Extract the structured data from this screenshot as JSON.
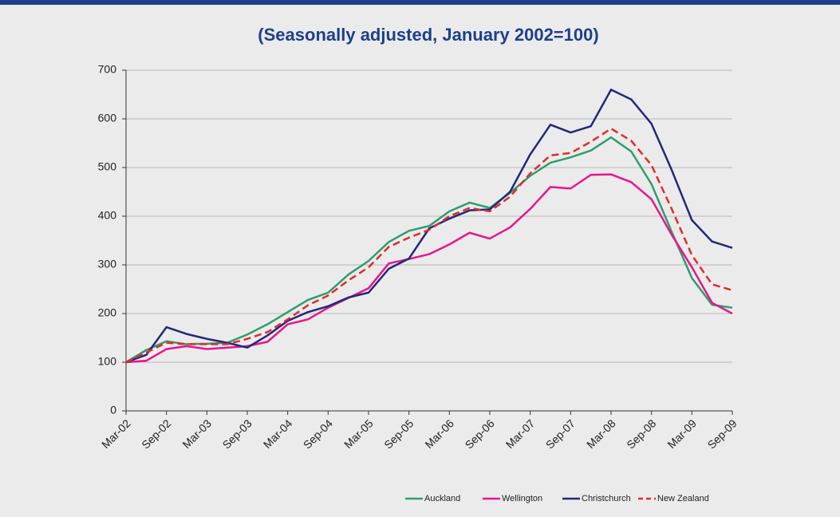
{
  "chart_data": {
    "type": "line",
    "title": "(Seasonally adjusted, January 2002=100)",
    "categories": [
      "Mar-02",
      null,
      "Sep-02",
      null,
      "Mar-03",
      null,
      "Sep-03",
      null,
      "Mar-04",
      null,
      "Sep-04",
      null,
      "Mar-05",
      null,
      "Sep-05",
      null,
      "Mar-06",
      null,
      "Sep-06",
      null,
      "Mar-07",
      null,
      "Sep-07",
      null,
      "Mar-08",
      null,
      "Sep-08",
      null,
      "Mar-09",
      null,
      "Sep-09"
    ],
    "series": [
      {
        "name": "Auckland",
        "color": "#2e9e6e",
        "dashed": false,
        "values": [
          100,
          125,
          143,
          137,
          138,
          140,
          157,
          178,
          203,
          228,
          243,
          280,
          308,
          347,
          370,
          380,
          410,
          428,
          417,
          448,
          483,
          510,
          521,
          535,
          562,
          533,
          466,
          368,
          273,
          218,
          212
        ]
      },
      {
        "name": "Wellington",
        "color": "#e6168c",
        "dashed": false,
        "values": [
          100,
          103,
          127,
          133,
          127,
          130,
          133,
          142,
          178,
          188,
          212,
          232,
          252,
          303,
          312,
          322,
          342,
          366,
          354,
          377,
          415,
          460,
          457,
          485,
          486,
          470,
          435,
          362,
          295,
          222,
          200
        ]
      },
      {
        "name": "Christchurch",
        "color": "#23287a",
        "dashed": false,
        "values": [
          100,
          115,
          172,
          158,
          148,
          140,
          130,
          155,
          185,
          203,
          215,
          233,
          243,
          292,
          313,
          375,
          395,
          412,
          414,
          450,
          527,
          588,
          572,
          585,
          660,
          640,
          590,
          495,
          392,
          348,
          335
        ]
      },
      {
        "name": "New Zealand",
        "color": "#e02b2b",
        "dashed": true,
        "values": [
          100,
          120,
          140,
          137,
          137,
          137,
          148,
          162,
          188,
          217,
          237,
          268,
          295,
          337,
          356,
          372,
          400,
          417,
          410,
          440,
          488,
          525,
          530,
          553,
          580,
          555,
          505,
          415,
          320,
          260,
          248
        ]
      }
    ],
    "ylim": [
      0,
      700
    ],
    "yticks": [
      0,
      100,
      200,
      300,
      400,
      500,
      600,
      700
    ],
    "grid": true,
    "legend": "bottom-right"
  }
}
